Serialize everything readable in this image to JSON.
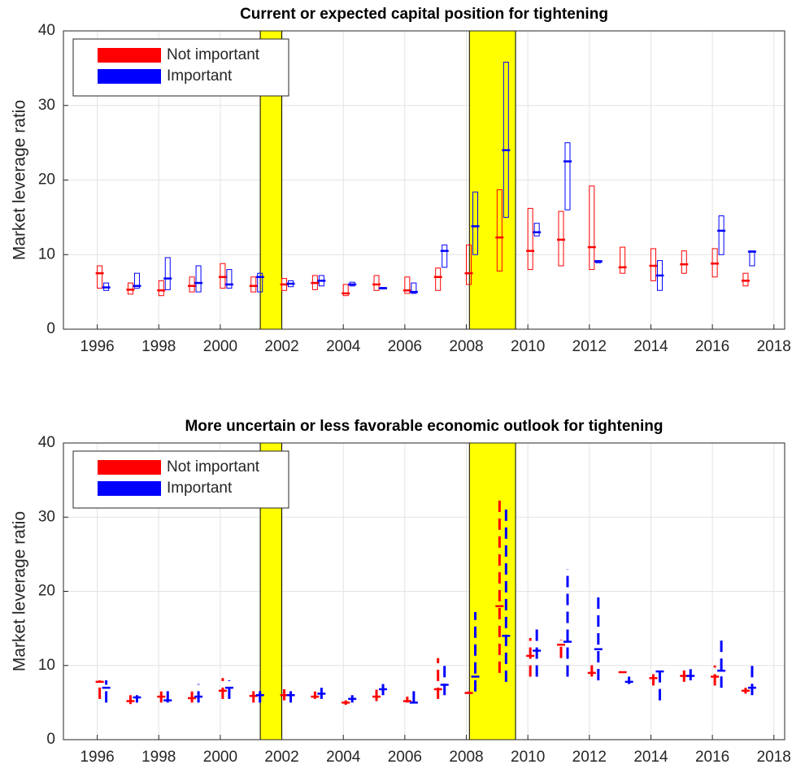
{
  "chart_data": [
    {
      "type": "box",
      "title": "Current or expected capital position for tightening",
      "ylabel": "Market leverage ratio",
      "xlim": [
        1994.9,
        2018.35
      ],
      "xticks": [
        1996,
        1998,
        2000,
        2002,
        2004,
        2006,
        2008,
        2010,
        2012,
        2014,
        2016,
        2018
      ],
      "ylim": [
        0,
        40
      ],
      "yticks": [
        0,
        10,
        20,
        30,
        40
      ],
      "grid": true,
      "legend": "upper left",
      "shading": [
        [
          2001.3,
          2002.0
        ],
        [
          2008.1,
          2009.6
        ]
      ],
      "shading_color": "#ffff00",
      "x": [
        1996,
        1997,
        1998,
        1999,
        2000,
        2001,
        2002,
        2003,
        2004,
        2005,
        2006,
        2007,
        2008,
        2009,
        2010,
        2011,
        2012,
        2013,
        2014,
        2015,
        2016,
        2017
      ],
      "series": [
        {
          "name": "Not important",
          "color": "#ff0000",
          "low": [
            5.5,
            4.7,
            4.5,
            5.0,
            5.5,
            5.0,
            5.2,
            5.3,
            4.5,
            5.2,
            4.8,
            5.2,
            6.0,
            7.8,
            8.0,
            8.5,
            8.0,
            7.5,
            6.5,
            7.5,
            7.0,
            5.8
          ],
          "high": [
            8.5,
            6.2,
            6.5,
            7.0,
            8.8,
            7.0,
            6.8,
            7.2,
            6.0,
            7.2,
            7.0,
            8.2,
            11.3,
            18.7,
            16.2,
            15.8,
            19.2,
            11.0,
            10.8,
            10.5,
            10.8,
            7.5
          ],
          "median": [
            7.5,
            5.3,
            5.2,
            5.8,
            7.0,
            5.8,
            6.0,
            6.2,
            4.8,
            6.0,
            5.2,
            7.0,
            7.5,
            12.3,
            10.5,
            12.0,
            11.0,
            8.3,
            8.5,
            8.7,
            8.8,
            6.5
          ]
        },
        {
          "name": "Important",
          "color": "#0000ff",
          "low": [
            5.2,
            5.5,
            5.3,
            5.0,
            5.5,
            5.0,
            5.7,
            5.8,
            5.8,
            5.4,
            4.8,
            8.3,
            10.0,
            15.0,
            12.5,
            16.0,
            8.9,
            null,
            5.2,
            null,
            10.0,
            8.5
          ],
          "high": [
            6.2,
            7.5,
            9.6,
            8.5,
            8.0,
            7.5,
            6.5,
            7.2,
            6.3,
            5.6,
            6.2,
            11.3,
            18.4,
            35.8,
            14.2,
            25.0,
            9.2,
            null,
            9.2,
            null,
            15.2,
            10.5
          ],
          "median": [
            5.6,
            5.8,
            6.8,
            6.2,
            6.0,
            7.0,
            6.1,
            6.5,
            6.0,
            5.5,
            5.0,
            10.5,
            13.8,
            24.0,
            13.0,
            22.5,
            9.1,
            null,
            7.2,
            null,
            13.2,
            10.4
          ]
        }
      ]
    },
    {
      "type": "range",
      "title": "More uncertain or less favorable economic outlook for tightening",
      "ylabel": "Market leverage ratio",
      "xlim": [
        1994.9,
        2018.35
      ],
      "xticks": [
        1996,
        1998,
        2000,
        2002,
        2004,
        2006,
        2008,
        2010,
        2012,
        2014,
        2016,
        2018
      ],
      "ylim": [
        0,
        40
      ],
      "yticks": [
        0,
        10,
        20,
        30,
        40
      ],
      "grid": true,
      "legend": "upper left",
      "shading": [
        [
          2001.3,
          2002.0
        ],
        [
          2008.1,
          2009.6
        ]
      ],
      "shading_color": "#ffff00",
      "x": [
        1996,
        1997,
        1998,
        1999,
        2000,
        2001,
        2002,
        2003,
        2004,
        2005,
        2006,
        2007,
        2008,
        2009,
        2010,
        2011,
        2012,
        2013,
        2014,
        2015,
        2016,
        2017
      ],
      "series": [
        {
          "name": "Not important",
          "color": "#ff0000",
          "low": [
            5.5,
            4.8,
            5.0,
            5.0,
            5.5,
            5.0,
            5.3,
            5.5,
            4.7,
            5.2,
            5.0,
            5.5,
            6.2,
            9.0,
            8.5,
            11.0,
            8.5,
            9.0,
            7.3,
            7.8,
            7.3,
            6.2
          ],
          "high": [
            8.0,
            6.0,
            6.5,
            6.5,
            8.3,
            7.0,
            6.8,
            6.5,
            5.3,
            7.2,
            5.8,
            11.0,
            6.5,
            32.3,
            13.7,
            13.5,
            10.5,
            9.2,
            9.5,
            10.2,
            10.0,
            7.0
          ],
          "median": [
            7.8,
            5.2,
            5.8,
            5.6,
            6.6,
            5.9,
            6.0,
            5.8,
            5.0,
            5.8,
            5.2,
            6.8,
            6.3,
            18.0,
            11.3,
            12.8,
            9.0,
            9.1,
            8.3,
            8.6,
            8.5,
            6.6
          ]
        },
        {
          "name": "Important",
          "color": "#0000ff",
          "low": [
            5.0,
            5.0,
            5.0,
            5.0,
            5.5,
            5.0,
            5.0,
            5.5,
            5.0,
            6.0,
            5.0,
            6.0,
            6.5,
            7.8,
            8.5,
            8.5,
            8.0,
            7.5,
            5.3,
            8.0,
            7.0,
            6.0
          ],
          "high": [
            8.0,
            6.0,
            7.0,
            7.5,
            8.0,
            7.0,
            7.0,
            7.0,
            6.0,
            7.5,
            7.0,
            10.5,
            17.2,
            31.5,
            15.0,
            23.0,
            19.2,
            8.5,
            10.0,
            9.5,
            13.8,
            10.5
          ],
          "median": [
            7.0,
            5.7,
            5.3,
            5.8,
            7.0,
            6.0,
            6.0,
            6.2,
            5.5,
            6.8,
            5.0,
            7.4,
            8.5,
            14.0,
            12.0,
            13.2,
            12.2,
            7.8,
            9.2,
            8.6,
            9.3,
            7.0
          ]
        }
      ]
    }
  ]
}
